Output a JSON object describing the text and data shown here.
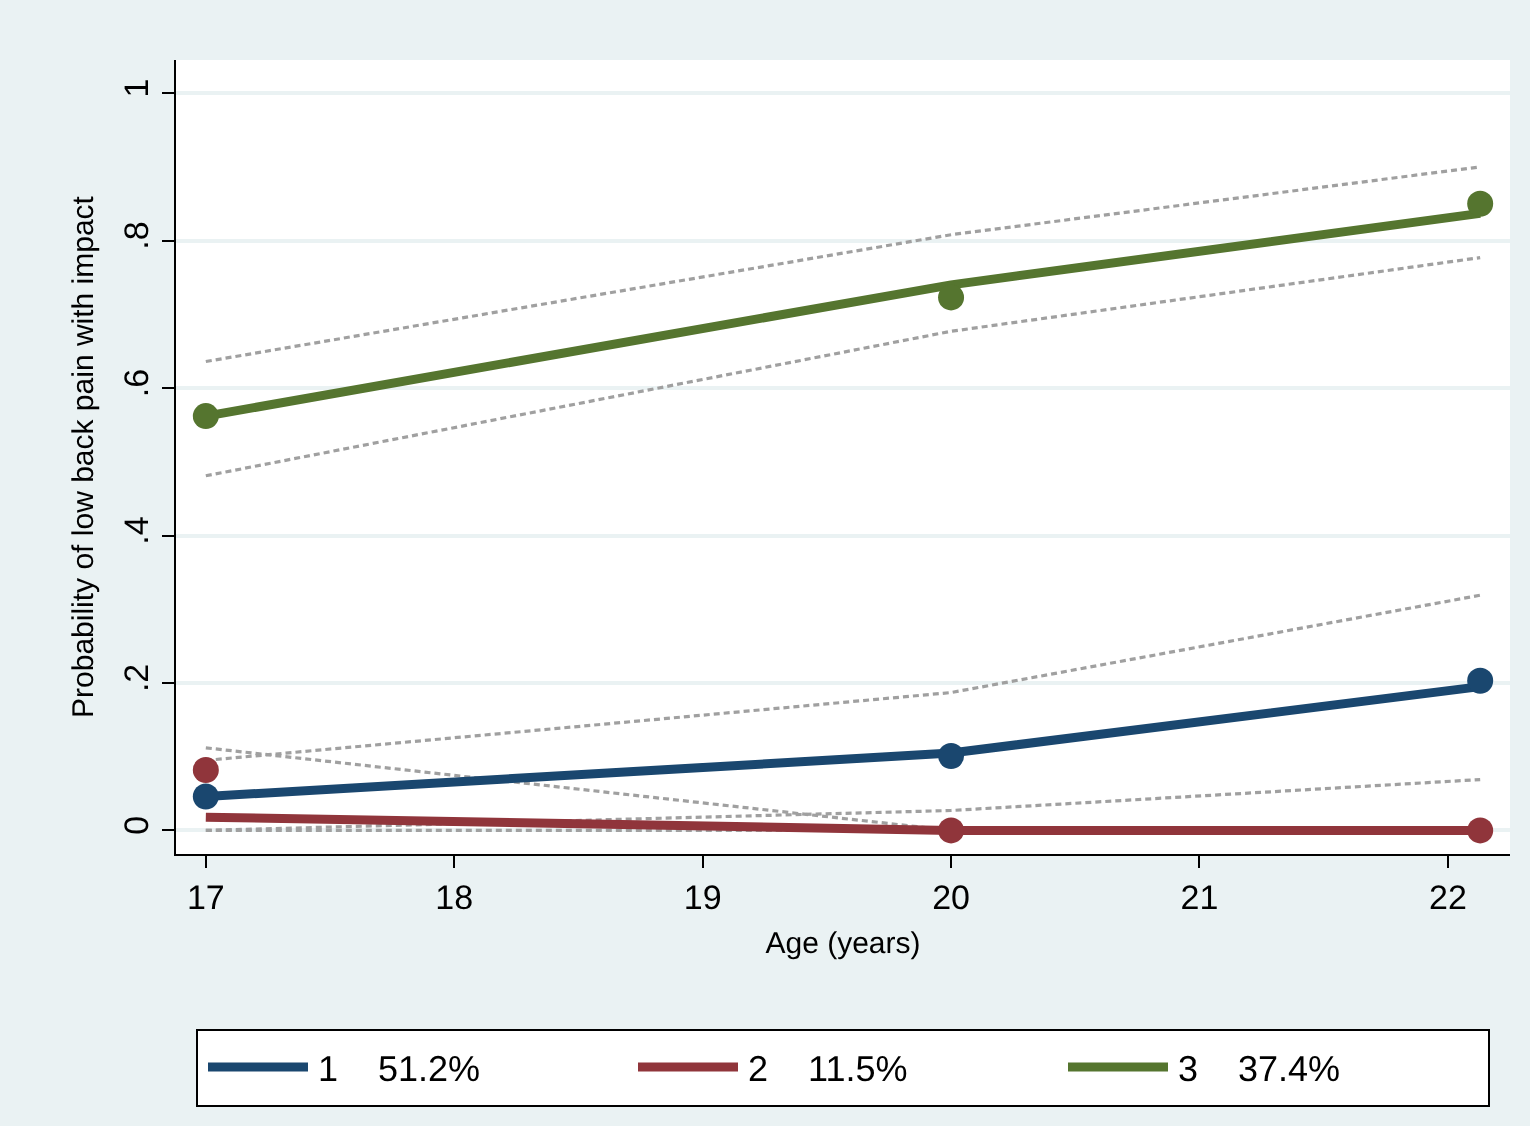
{
  "chart_data": {
    "type": "line",
    "xlabel": "Age (years)",
    "ylabel": "Probability of low back pain with impact",
    "x": [
      17,
      20,
      22.13
    ],
    "series": [
      {
        "type": "line",
        "color": "#a0a0a0",
        "line_style": "dashed",
        "marker": "none",
        "values": [
          0.636,
          0.808,
          0.9
        ]
      },
      {
        "type": "line",
        "color": "#a0a0a0",
        "line_style": "dashed",
        "marker": "none",
        "values": [
          0.481,
          0.677,
          0.777
        ]
      },
      {
        "type": "line",
        "color": "#a0a0a0",
        "line_style": "dashed",
        "marker": "none",
        "values": [
          0.095,
          0.187,
          0.319
        ]
      },
      {
        "type": "line",
        "color": "#a0a0a0",
        "line_style": "dashed",
        "marker": "none",
        "values": [
          0,
          0.027,
          0.069
        ]
      },
      {
        "type": "line",
        "color": "#a0a0a0",
        "line_style": "dashed",
        "marker": "none",
        "values": [
          0.112,
          0,
          0
        ]
      },
      {
        "type": "line",
        "color": "#a0a0a0",
        "line_style": "dashed",
        "marker": "none",
        "values": [
          0,
          0,
          0
        ]
      },
      {
        "type": "line",
        "name": "1    51.2%",
        "color": "#1a476f",
        "line_style": "solid",
        "marker": "none",
        "values": [
          0.046,
          0.105,
          0.195
        ]
      },
      {
        "type": "line",
        "name": "2    11.5%",
        "color": "#90353b",
        "line_style": "solid",
        "marker": "none",
        "values": [
          0.018,
          0,
          0
        ]
      },
      {
        "type": "line",
        "name": "3    37.4%",
        "color": "#55752f",
        "line_style": "solid",
        "marker": "none",
        "values": [
          0.562,
          0.74,
          0.837
        ]
      },
      {
        "type": "scatter",
        "color": "#1a476f",
        "marker": "circle",
        "values": [
          0.046,
          0.101,
          0.203
        ]
      },
      {
        "type": "scatter",
        "color": "#90353b",
        "marker": "circle",
        "values": [
          0.082,
          0,
          0
        ]
      },
      {
        "type": "scatter",
        "color": "#55752f",
        "marker": "circle",
        "values": [
          0.562,
          0.723,
          0.85
        ]
      }
    ],
    "xlim": [
      16.88,
      22.25
    ],
    "xticks": [
      17,
      18,
      19,
      20,
      21,
      22
    ],
    "ylim": [
      -0.032,
      1.045
    ],
    "yticks": [
      0,
      {
        "value": 0.2,
        "label": ".2"
      },
      {
        "value": 0.4,
        "label": ".4"
      },
      {
        "value": 0.6,
        "label": ".6"
      },
      {
        "value": 0.8,
        "label": ".8"
      },
      1
    ],
    "grid": "y",
    "legend": "bottom"
  }
}
